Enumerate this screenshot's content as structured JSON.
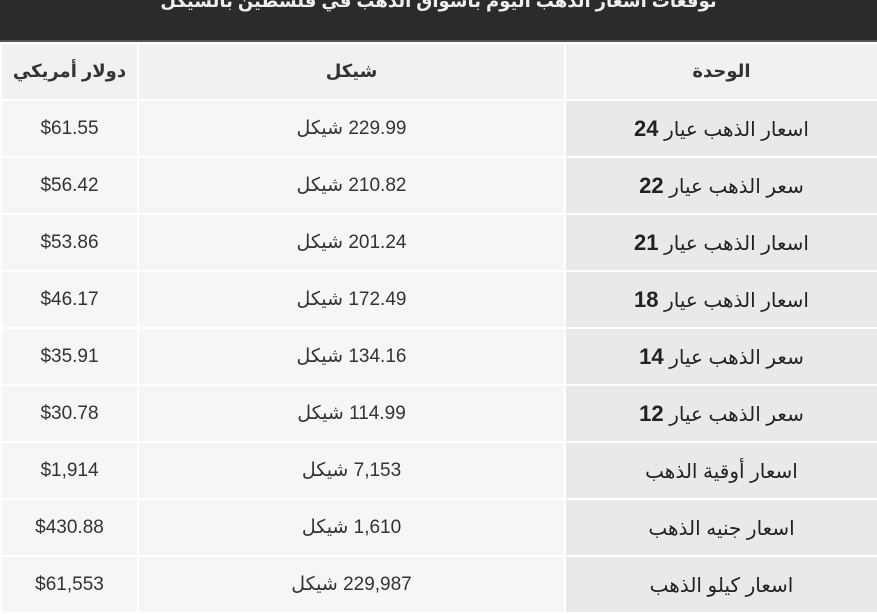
{
  "title": "توقعات أسعار الذهب اليوم بأسواق الذهب في فلسطين بالشيكل",
  "headers": {
    "unit": "الوحدة",
    "ils": "شيكل",
    "usd": "دولار أمريكي"
  },
  "rows": [
    {
      "label": "اسعار الذهب عيار",
      "karat": "24",
      "ils": "229.99 شيكل",
      "usd": "$61.55"
    },
    {
      "label": "سعر الذهب عيار",
      "karat": "22",
      "ils": "210.82 شيكل",
      "usd": "$56.42"
    },
    {
      "label": "اسعار الذهب عيار",
      "karat": "21",
      "ils": "201.24 شيكل",
      "usd": "$53.86"
    },
    {
      "label": "اسعار الذهب عيار",
      "karat": "18",
      "ils": "172.49 شيكل",
      "usd": "$46.17"
    },
    {
      "label": "سعر الذهب عيار",
      "karat": "14",
      "ils": "134.16 شيكل",
      "usd": "$35.91"
    },
    {
      "label": "سعر الذهب عيار",
      "karat": "12",
      "ils": "114.99 شيكل",
      "usd": "$30.78"
    },
    {
      "label": "اسعار أوقية الذهب",
      "karat": "",
      "ils": "7,153 شيكل",
      "usd": "$1,914"
    },
    {
      "label": "اسعار جنيه الذهب",
      "karat": "",
      "ils": "1,610 شيكل",
      "usd": "$430.88"
    },
    {
      "label": "اسعار كيلو الذهب",
      "karat": "",
      "ils": "229,987 شيكل",
      "usd": "$61,553"
    }
  ]
}
